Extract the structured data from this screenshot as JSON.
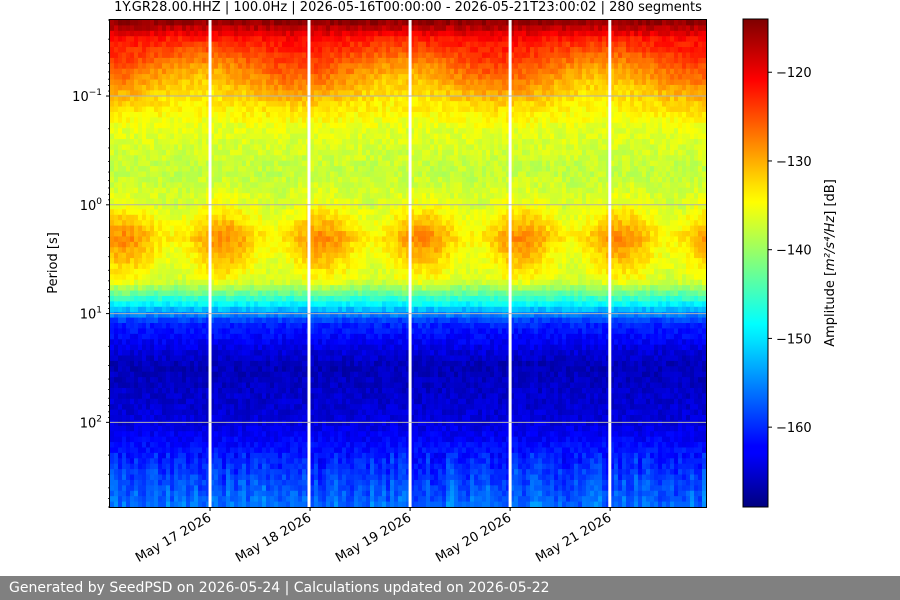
{
  "chart_data": {
    "type": "heatmap",
    "title": "1Y.GR28.00.HHZ | 100.0Hz | 2026-05-16T00:00:00 - 2026-05-21T23:00:02 | 280 segments",
    "xlabel": "",
    "ylabel": "Period [s]",
    "y_scale": "log",
    "y_inverted": true,
    "ylim": [
      0.02,
      600
    ],
    "xlim": [
      "2026-05-16T00:00:00",
      "2026-05-21T23:00:02"
    ],
    "x_ticks": [
      {
        "date": "2026-05-17T00:00:00",
        "label": "May 17 2026"
      },
      {
        "date": "2026-05-18T00:00:00",
        "label": "May 18 2026"
      },
      {
        "date": "2026-05-19T00:00:00",
        "label": "May 19 2026"
      },
      {
        "date": "2026-05-20T00:00:00",
        "label": "May 20 2026"
      },
      {
        "date": "2026-05-21T00:00:00",
        "label": "May 21 2026"
      }
    ],
    "y_ticks": [
      {
        "value": 0.1,
        "base": "10",
        "exp": "−1"
      },
      {
        "value": 1,
        "base": "10",
        "exp": "0"
      },
      {
        "value": 10,
        "base": "10",
        "exp": "1"
      },
      {
        "value": 100,
        "base": "10",
        "exp": "2"
      }
    ],
    "grid": true,
    "data_gaps": [
      "2026-05-17T00:00:00",
      "2026-05-17T23:45:00",
      "2026-05-19T00:00:00",
      "2026-05-20T00:00:00",
      "2026-05-20T23:55:00"
    ],
    "colormap": "jet",
    "colorbar": {
      "label_prefix": "Amplitude [",
      "label_math": "m²/s⁴/Hz",
      "label_suffix": "] [dB]",
      "range": [
        -169,
        -114
      ],
      "ticks": [
        {
          "value": -120,
          "label": "−120"
        },
        {
          "value": -130,
          "label": "−130"
        },
        {
          "value": -140,
          "label": "−140"
        },
        {
          "value": -150,
          "label": "−150"
        },
        {
          "value": -160,
          "label": "−160"
        }
      ]
    },
    "amplitude_profile_by_period": [
      {
        "period": 0.02,
        "db": -114
      },
      {
        "period": 0.03,
        "db": -122
      },
      {
        "period": 0.06,
        "db": -128
      },
      {
        "period": 0.1,
        "db": -132
      },
      {
        "period": 0.2,
        "db": -136
      },
      {
        "period": 0.5,
        "db": -138
      },
      {
        "period": 1.0,
        "db": -136
      },
      {
        "period": 2.0,
        "db": -131
      },
      {
        "period": 5.0,
        "db": -136
      },
      {
        "period": 8.0,
        "db": -148
      },
      {
        "period": 12.0,
        "db": -160
      },
      {
        "period": 30.0,
        "db": -166
      },
      {
        "period": 100.0,
        "db": -164
      },
      {
        "period": 300.0,
        "db": -159
      },
      {
        "period": 600.0,
        "db": -156
      }
    ]
  },
  "footer": {
    "text": "Generated by SeedPSD on 2026-05-24 | Calculations updated on 2026-05-22"
  }
}
